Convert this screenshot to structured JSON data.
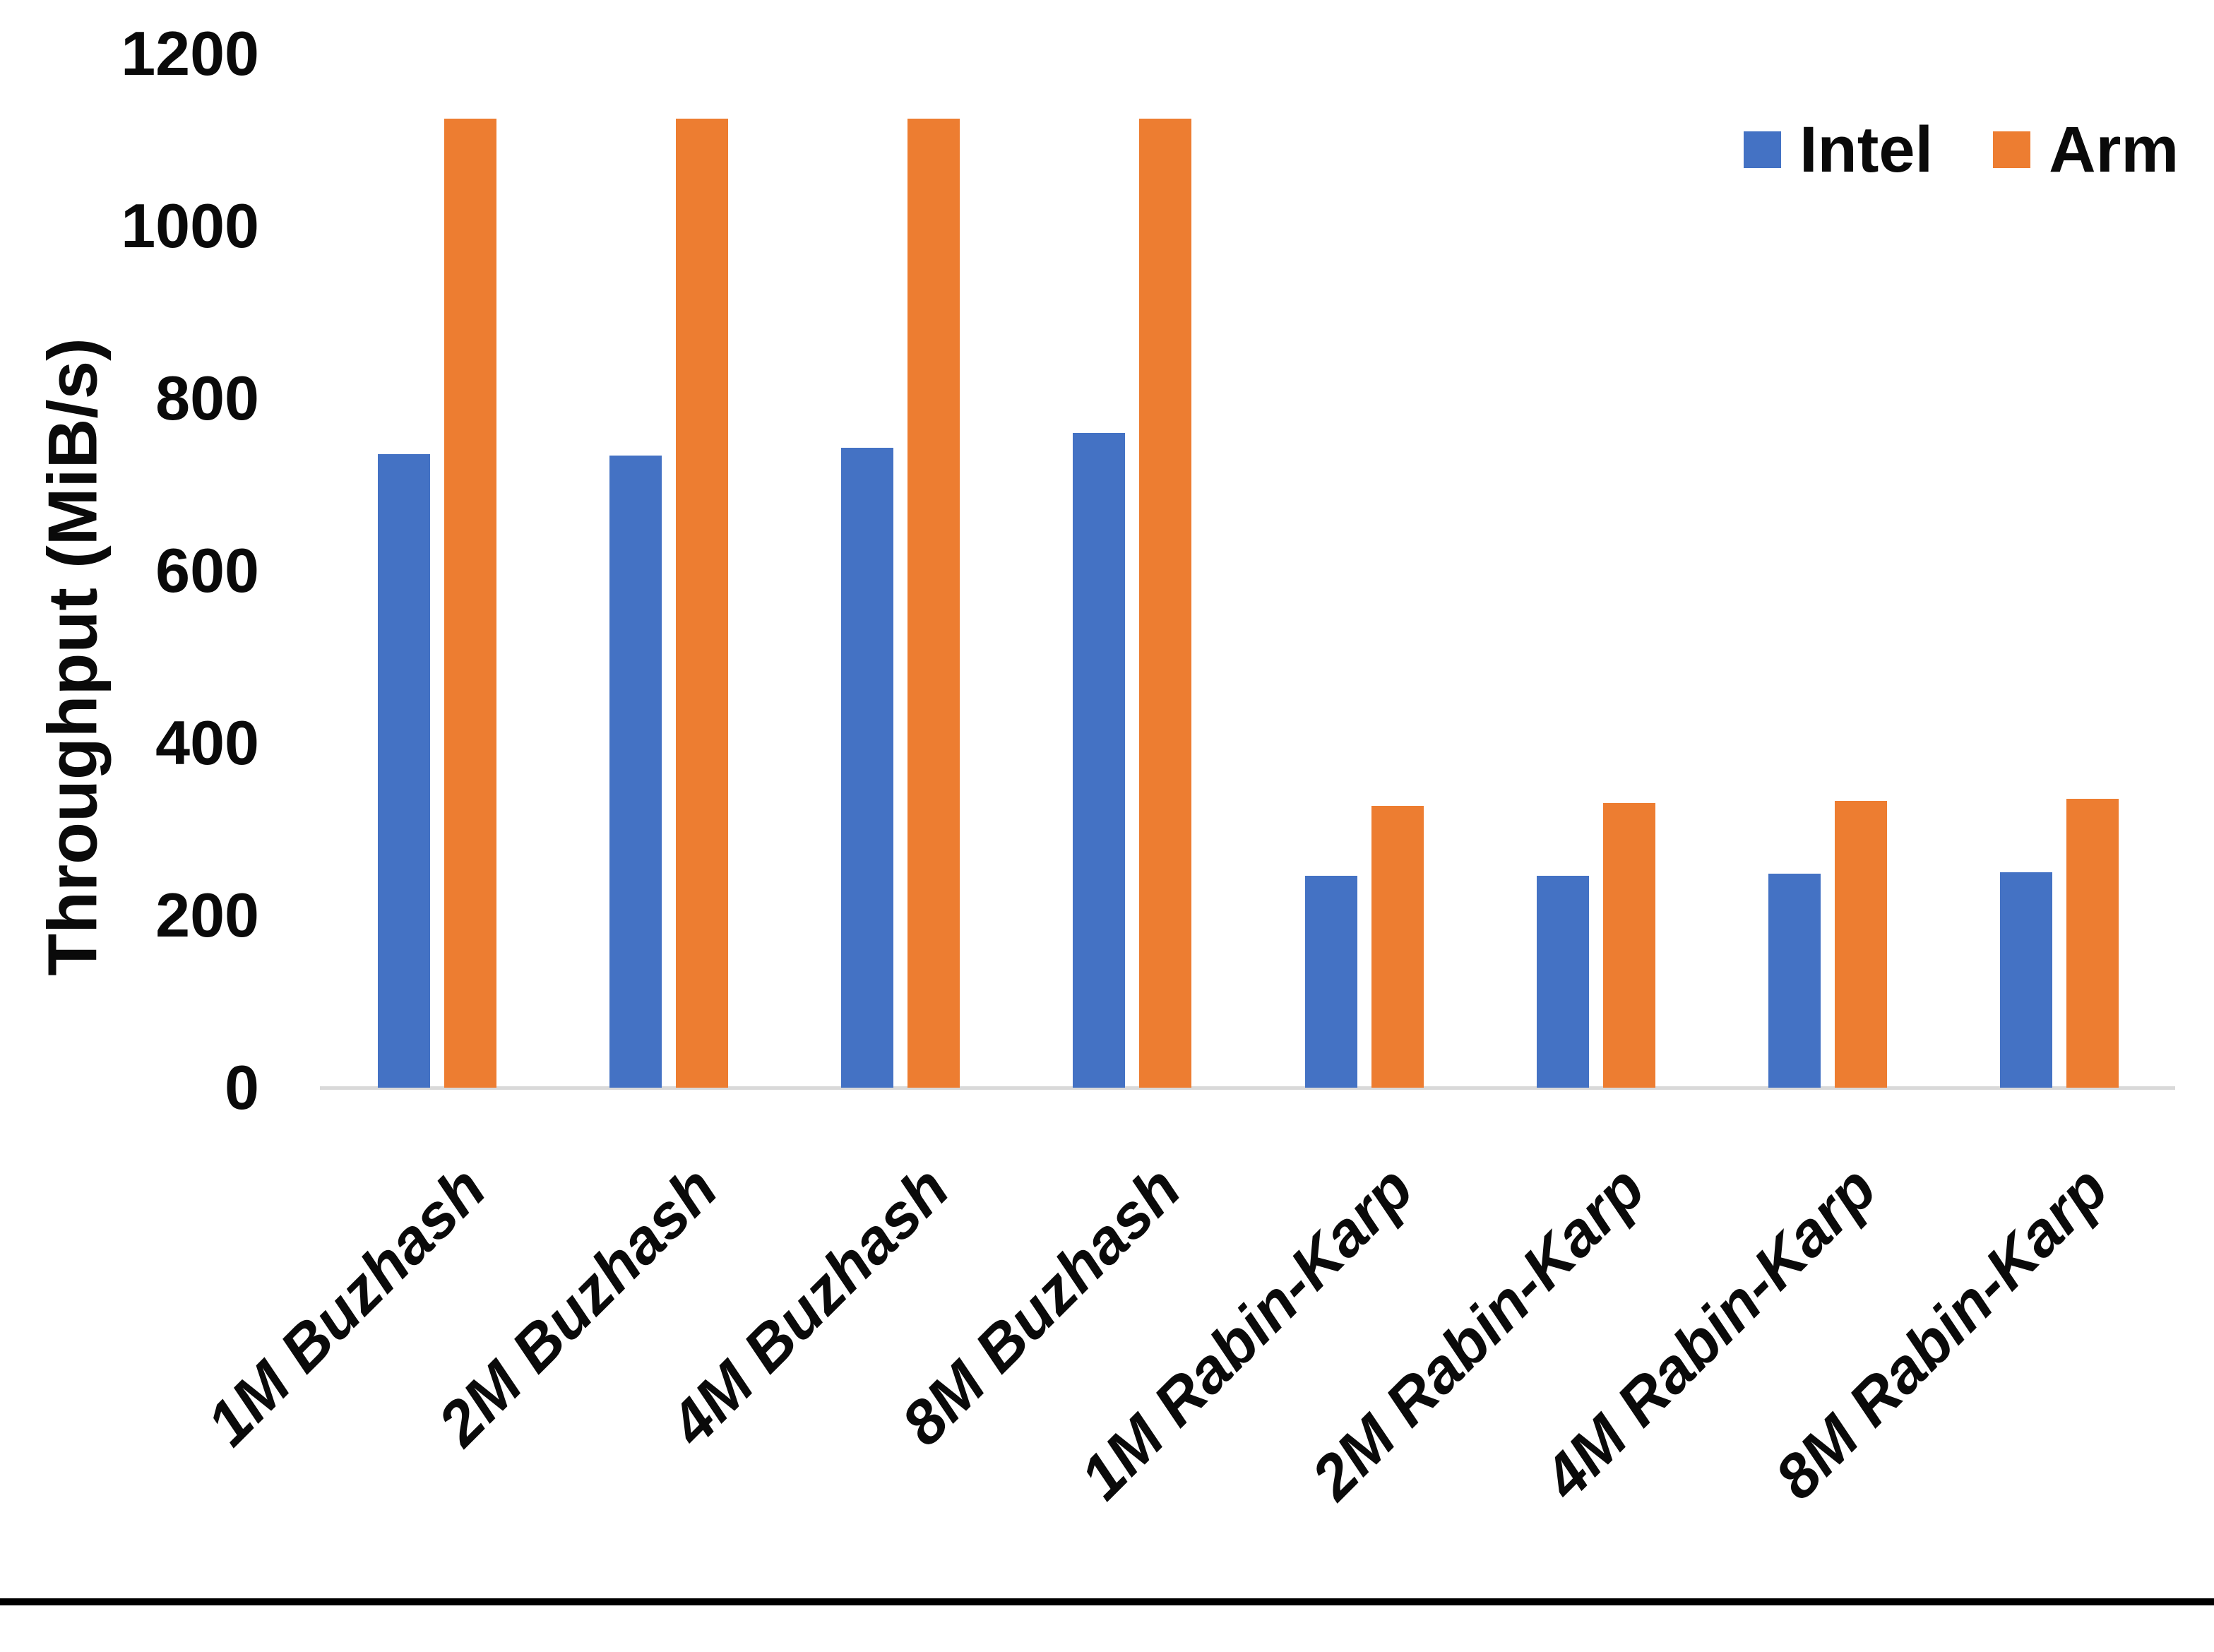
{
  "chart_data": {
    "type": "bar",
    "title": "",
    "categories": [
      "1M Buzhash",
      "2M Buzhash",
      "4M Buzhash",
      "8M Buzhash",
      "1M Rabin-Karp",
      "2M Rabin-Karp",
      "4M Rabin-Karp",
      "8M Rabin-Karp"
    ],
    "series": [
      {
        "name": "Intel",
        "color": "#4472C4",
        "values": [
          735,
          734,
          743,
          760,
          246,
          246,
          248,
          250
        ]
      },
      {
        "name": "Arm",
        "color": "#ED7D31",
        "values": [
          1125,
          1125,
          1125,
          1125,
          327,
          330,
          333,
          335
        ]
      }
    ],
    "xlabel": "",
    "ylabel": "Throughput (MiB/s)",
    "ylim": [
      0,
      1200
    ],
    "yticks": [
      0,
      200,
      400,
      600,
      800,
      1000,
      1200
    ],
    "grid": false,
    "legend_position": "top-right",
    "axis_line_color": "#D9D9D9",
    "text_color": "#0A0A0A"
  }
}
